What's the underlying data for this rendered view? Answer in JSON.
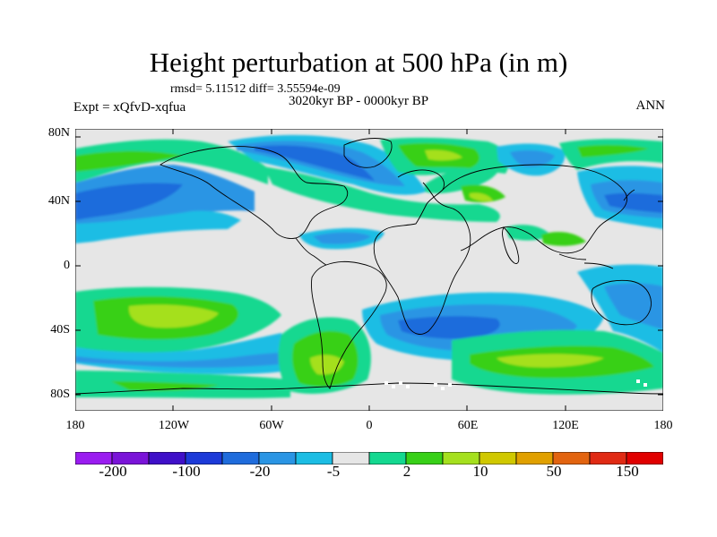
{
  "title": "Height perturbation at 500 hPa (in m)",
  "stats_line": "rmsd= 5.11512 diff= 3.55594e-09",
  "experiment": "Expt = xQfvD-xqfua",
  "period": "3020kyr BP - 0000kyr BP",
  "season": "ANN",
  "y_ticks": [
    "80N",
    "40N",
    "0",
    "40S",
    "80S"
  ],
  "x_ticks": [
    "180",
    "120W",
    "60W",
    "0",
    "60E",
    "120E",
    "180"
  ],
  "colorbar": {
    "colors": [
      "#9a1cf0",
      "#7a14d8",
      "#3f10c8",
      "#1c3ad8",
      "#1f6cdc",
      "#2a95e4",
      "#1cbde4",
      "#e6e6e6",
      "#14d890",
      "#38d018",
      "#a5e01e",
      "#d0c800",
      "#e0a000",
      "#e26410",
      "#e02a14",
      "#e00000"
    ],
    "labels": [
      "-200",
      "-100",
      "-20",
      "-5",
      "2",
      "10",
      "50",
      "150"
    ]
  },
  "map_background_color": "#e6e6e6"
}
